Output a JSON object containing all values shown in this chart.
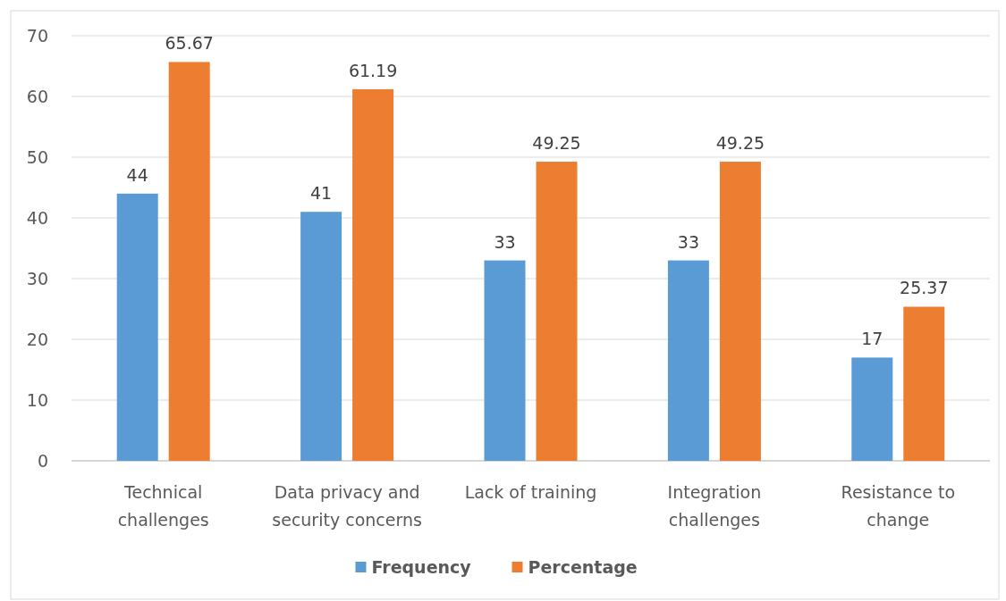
{
  "chart_data": {
    "type": "bar",
    "categories": [
      "Technical challenges",
      "Data privacy and security concerns",
      "Lack of training",
      "Integration challenges",
      "Resistance to change"
    ],
    "series": [
      {
        "name": "Frequency",
        "color": "#5b9bd5",
        "values": [
          44,
          41,
          33,
          33,
          17
        ]
      },
      {
        "name": "Percentage",
        "color": "#ed7d31",
        "values": [
          65.67,
          61.19,
          49.25,
          49.25,
          25.37
        ]
      }
    ],
    "ylim": [
      0,
      70
    ],
    "yticks": [
      0,
      10,
      20,
      30,
      40,
      50,
      60,
      70
    ],
    "grid": "y",
    "legend": "bottom",
    "data_labels": true
  }
}
